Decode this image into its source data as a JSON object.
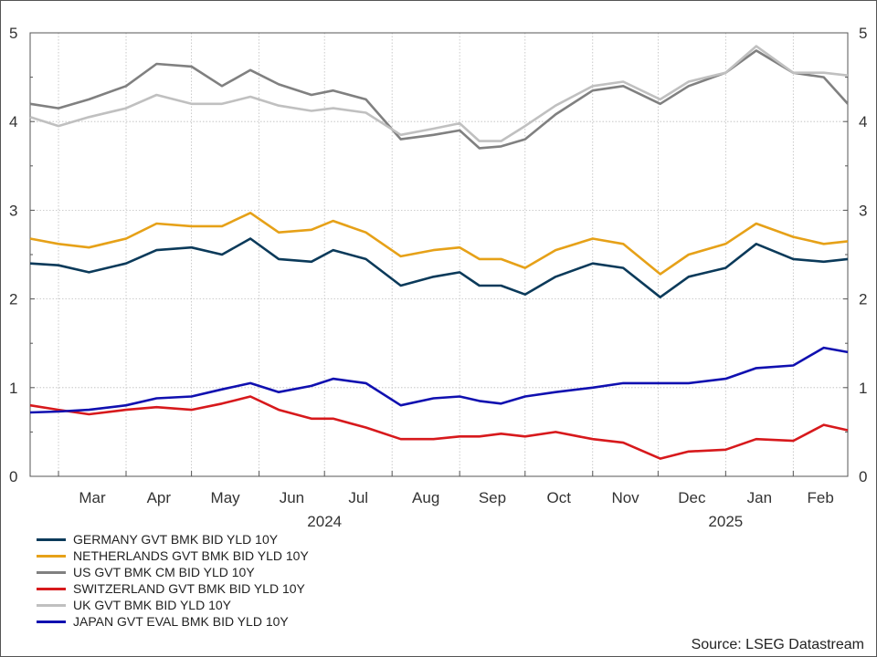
{
  "chart_data": {
    "type": "line",
    "x_range": [
      "2024-02-17",
      "2025-02-26"
    ],
    "ylim": [
      0,
      5
    ],
    "y_ticks": [
      0,
      1,
      2,
      3,
      4,
      5
    ],
    "grid": true,
    "legend_position": "bottom-left",
    "month_ticks": [
      {
        "label": "Mar",
        "date": "2024-03-01"
      },
      {
        "label": "Apr",
        "date": "2024-04-01"
      },
      {
        "label": "May",
        "date": "2024-05-01"
      },
      {
        "label": "Jun",
        "date": "2024-06-01"
      },
      {
        "label": "Jul",
        "date": "2024-07-01"
      },
      {
        "label": "Aug",
        "date": "2024-08-01"
      },
      {
        "label": "Sep",
        "date": "2024-09-01"
      },
      {
        "label": "Oct",
        "date": "2024-10-01"
      },
      {
        "label": "Nov",
        "date": "2024-11-01"
      },
      {
        "label": "Dec",
        "date": "2024-12-01"
      },
      {
        "label": "Jan",
        "date": "2025-01-01"
      },
      {
        "label": "Feb",
        "date": "2025-02-01"
      }
    ],
    "year_labels": [
      {
        "label": "2024",
        "date": "2024-07-01"
      },
      {
        "label": "2025",
        "date": "2025-01-01"
      }
    ],
    "series": [
      {
        "name": "GERMANY GVT BMK BID YLD 10Y",
        "color": "#0b3a5a",
        "points": [
          [
            "2024-02-17",
            2.4
          ],
          [
            "2024-03-01",
            2.38
          ],
          [
            "2024-03-15",
            2.3
          ],
          [
            "2024-04-01",
            2.4
          ],
          [
            "2024-04-15",
            2.55
          ],
          [
            "2024-05-01",
            2.58
          ],
          [
            "2024-05-15",
            2.5
          ],
          [
            "2024-05-28",
            2.68
          ],
          [
            "2024-06-10",
            2.45
          ],
          [
            "2024-06-25",
            2.42
          ],
          [
            "2024-07-05",
            2.55
          ],
          [
            "2024-07-20",
            2.45
          ],
          [
            "2024-08-05",
            2.15
          ],
          [
            "2024-08-20",
            2.25
          ],
          [
            "2024-09-01",
            2.3
          ],
          [
            "2024-09-10",
            2.15
          ],
          [
            "2024-09-20",
            2.15
          ],
          [
            "2024-10-01",
            2.05
          ],
          [
            "2024-10-15",
            2.25
          ],
          [
            "2024-11-01",
            2.4
          ],
          [
            "2024-11-15",
            2.35
          ],
          [
            "2024-12-02",
            2.02
          ],
          [
            "2024-12-15",
            2.25
          ],
          [
            "2025-01-01",
            2.35
          ],
          [
            "2025-01-15",
            2.62
          ],
          [
            "2025-02-01",
            2.45
          ],
          [
            "2025-02-15",
            2.42
          ],
          [
            "2025-02-26",
            2.45
          ]
        ]
      },
      {
        "name": "NETHERLANDS GVT BMK BID YLD 10Y",
        "color": "#e6a118",
        "points": [
          [
            "2024-02-17",
            2.68
          ],
          [
            "2024-03-01",
            2.62
          ],
          [
            "2024-03-15",
            2.58
          ],
          [
            "2024-04-01",
            2.68
          ],
          [
            "2024-04-15",
            2.85
          ],
          [
            "2024-05-01",
            2.82
          ],
          [
            "2024-05-15",
            2.82
          ],
          [
            "2024-05-28",
            2.97
          ],
          [
            "2024-06-10",
            2.75
          ],
          [
            "2024-06-25",
            2.78
          ],
          [
            "2024-07-05",
            2.88
          ],
          [
            "2024-07-20",
            2.75
          ],
          [
            "2024-08-05",
            2.48
          ],
          [
            "2024-08-20",
            2.55
          ],
          [
            "2024-09-01",
            2.58
          ],
          [
            "2024-09-10",
            2.45
          ],
          [
            "2024-09-20",
            2.45
          ],
          [
            "2024-10-01",
            2.35
          ],
          [
            "2024-10-15",
            2.55
          ],
          [
            "2024-11-01",
            2.68
          ],
          [
            "2024-11-15",
            2.62
          ],
          [
            "2024-12-02",
            2.28
          ],
          [
            "2024-12-15",
            2.5
          ],
          [
            "2025-01-01",
            2.62
          ],
          [
            "2025-01-15",
            2.85
          ],
          [
            "2025-02-01",
            2.7
          ],
          [
            "2025-02-15",
            2.62
          ],
          [
            "2025-02-26",
            2.65
          ]
        ]
      },
      {
        "name": "US GVT BMK CM BID YLD 10Y",
        "color": "#808080",
        "points": [
          [
            "2024-02-17",
            4.2
          ],
          [
            "2024-03-01",
            4.15
          ],
          [
            "2024-03-15",
            4.25
          ],
          [
            "2024-04-01",
            4.4
          ],
          [
            "2024-04-15",
            4.65
          ],
          [
            "2024-05-01",
            4.62
          ],
          [
            "2024-05-15",
            4.4
          ],
          [
            "2024-05-28",
            4.58
          ],
          [
            "2024-06-10",
            4.42
          ],
          [
            "2024-06-25",
            4.3
          ],
          [
            "2024-07-05",
            4.35
          ],
          [
            "2024-07-20",
            4.25
          ],
          [
            "2024-08-05",
            3.8
          ],
          [
            "2024-08-20",
            3.85
          ],
          [
            "2024-09-01",
            3.9
          ],
          [
            "2024-09-10",
            3.7
          ],
          [
            "2024-09-20",
            3.72
          ],
          [
            "2024-10-01",
            3.8
          ],
          [
            "2024-10-15",
            4.08
          ],
          [
            "2024-11-01",
            4.35
          ],
          [
            "2024-11-15",
            4.4
          ],
          [
            "2024-12-02",
            4.2
          ],
          [
            "2024-12-15",
            4.4
          ],
          [
            "2025-01-01",
            4.55
          ],
          [
            "2025-01-15",
            4.8
          ],
          [
            "2025-02-01",
            4.55
          ],
          [
            "2025-02-15",
            4.5
          ],
          [
            "2025-02-26",
            4.2
          ]
        ]
      },
      {
        "name": "SWITZERLAND GVT BMK BID YLD 10Y",
        "color": "#d7191c",
        "points": [
          [
            "2024-02-17",
            0.8
          ],
          [
            "2024-03-01",
            0.75
          ],
          [
            "2024-03-15",
            0.7
          ],
          [
            "2024-04-01",
            0.75
          ],
          [
            "2024-04-15",
            0.78
          ],
          [
            "2024-05-01",
            0.75
          ],
          [
            "2024-05-15",
            0.82
          ],
          [
            "2024-05-28",
            0.9
          ],
          [
            "2024-06-10",
            0.75
          ],
          [
            "2024-06-25",
            0.65
          ],
          [
            "2024-07-05",
            0.65
          ],
          [
            "2024-07-20",
            0.55
          ],
          [
            "2024-08-05",
            0.42
          ],
          [
            "2024-08-20",
            0.42
          ],
          [
            "2024-09-01",
            0.45
          ],
          [
            "2024-09-10",
            0.45
          ],
          [
            "2024-09-20",
            0.48
          ],
          [
            "2024-10-01",
            0.45
          ],
          [
            "2024-10-15",
            0.5
          ],
          [
            "2024-11-01",
            0.42
          ],
          [
            "2024-11-15",
            0.38
          ],
          [
            "2024-12-02",
            0.2
          ],
          [
            "2024-12-15",
            0.28
          ],
          [
            "2025-01-01",
            0.3
          ],
          [
            "2025-01-15",
            0.42
          ],
          [
            "2025-02-01",
            0.4
          ],
          [
            "2025-02-15",
            0.58
          ],
          [
            "2025-02-26",
            0.52
          ]
        ]
      },
      {
        "name": "UK GVT BMK BID YLD 10Y",
        "color": "#c0c0c0",
        "points": [
          [
            "2024-02-17",
            4.05
          ],
          [
            "2024-03-01",
            3.95
          ],
          [
            "2024-03-15",
            4.05
          ],
          [
            "2024-04-01",
            4.15
          ],
          [
            "2024-04-15",
            4.3
          ],
          [
            "2024-05-01",
            4.2
          ],
          [
            "2024-05-15",
            4.2
          ],
          [
            "2024-05-28",
            4.28
          ],
          [
            "2024-06-10",
            4.18
          ],
          [
            "2024-06-25",
            4.12
          ],
          [
            "2024-07-05",
            4.15
          ],
          [
            "2024-07-20",
            4.1
          ],
          [
            "2024-08-05",
            3.85
          ],
          [
            "2024-08-20",
            3.92
          ],
          [
            "2024-09-01",
            3.98
          ],
          [
            "2024-09-10",
            3.78
          ],
          [
            "2024-09-20",
            3.78
          ],
          [
            "2024-10-01",
            3.95
          ],
          [
            "2024-10-15",
            4.18
          ],
          [
            "2024-11-01",
            4.4
          ],
          [
            "2024-11-15",
            4.45
          ],
          [
            "2024-12-02",
            4.25
          ],
          [
            "2024-12-15",
            4.45
          ],
          [
            "2025-01-01",
            4.55
          ],
          [
            "2025-01-15",
            4.85
          ],
          [
            "2025-02-01",
            4.55
          ],
          [
            "2025-02-15",
            4.55
          ],
          [
            "2025-02-26",
            4.52
          ]
        ]
      },
      {
        "name": "JAPAN GVT EVAL BMK BID YLD 10Y",
        "color": "#1010b0",
        "points": [
          [
            "2024-02-17",
            0.72
          ],
          [
            "2024-03-01",
            0.73
          ],
          [
            "2024-03-15",
            0.75
          ],
          [
            "2024-04-01",
            0.8
          ],
          [
            "2024-04-15",
            0.88
          ],
          [
            "2024-05-01",
            0.9
          ],
          [
            "2024-05-15",
            0.98
          ],
          [
            "2024-05-28",
            1.05
          ],
          [
            "2024-06-10",
            0.95
          ],
          [
            "2024-06-25",
            1.02
          ],
          [
            "2024-07-05",
            1.1
          ],
          [
            "2024-07-20",
            1.05
          ],
          [
            "2024-08-05",
            0.8
          ],
          [
            "2024-08-20",
            0.88
          ],
          [
            "2024-09-01",
            0.9
          ],
          [
            "2024-09-10",
            0.85
          ],
          [
            "2024-09-20",
            0.82
          ],
          [
            "2024-10-01",
            0.9
          ],
          [
            "2024-10-15",
            0.95
          ],
          [
            "2024-11-01",
            1.0
          ],
          [
            "2024-11-15",
            1.05
          ],
          [
            "2024-12-02",
            1.05
          ],
          [
            "2024-12-15",
            1.05
          ],
          [
            "2025-01-01",
            1.1
          ],
          [
            "2025-01-15",
            1.22
          ],
          [
            "2025-02-01",
            1.25
          ],
          [
            "2025-02-15",
            1.45
          ],
          [
            "2025-02-26",
            1.4
          ]
        ]
      }
    ]
  },
  "source": "Source: LSEG Datastream"
}
